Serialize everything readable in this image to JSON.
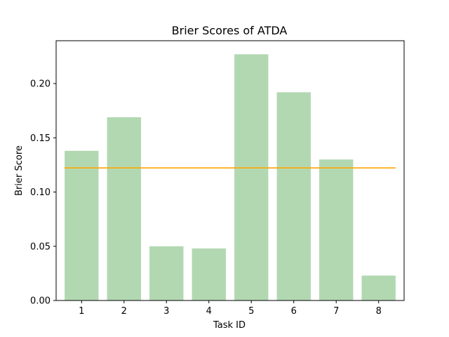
{
  "chart_data": {
    "type": "bar",
    "title": "Brier Scores of ATDA",
    "xlabel": "Task ID",
    "ylabel": "Brier Score",
    "categories": [
      "1",
      "2",
      "3",
      "4",
      "5",
      "6",
      "7",
      "8"
    ],
    "values": [
      0.138,
      0.169,
      0.05,
      0.048,
      0.227,
      0.192,
      0.13,
      0.023
    ],
    "reference_line": {
      "value": 0.1222
    },
    "ylim": [
      0,
      0.2395
    ],
    "yticks": [
      0.0,
      0.05,
      0.1,
      0.15,
      0.2
    ],
    "ytick_labels": [
      "0.00",
      "0.05",
      "0.10",
      "0.15",
      "0.20"
    ],
    "grid": false,
    "legend": "none",
    "colors": {
      "bar": "#b2d8b2",
      "reference_line": "#ffa500",
      "axes": "#000000"
    }
  }
}
